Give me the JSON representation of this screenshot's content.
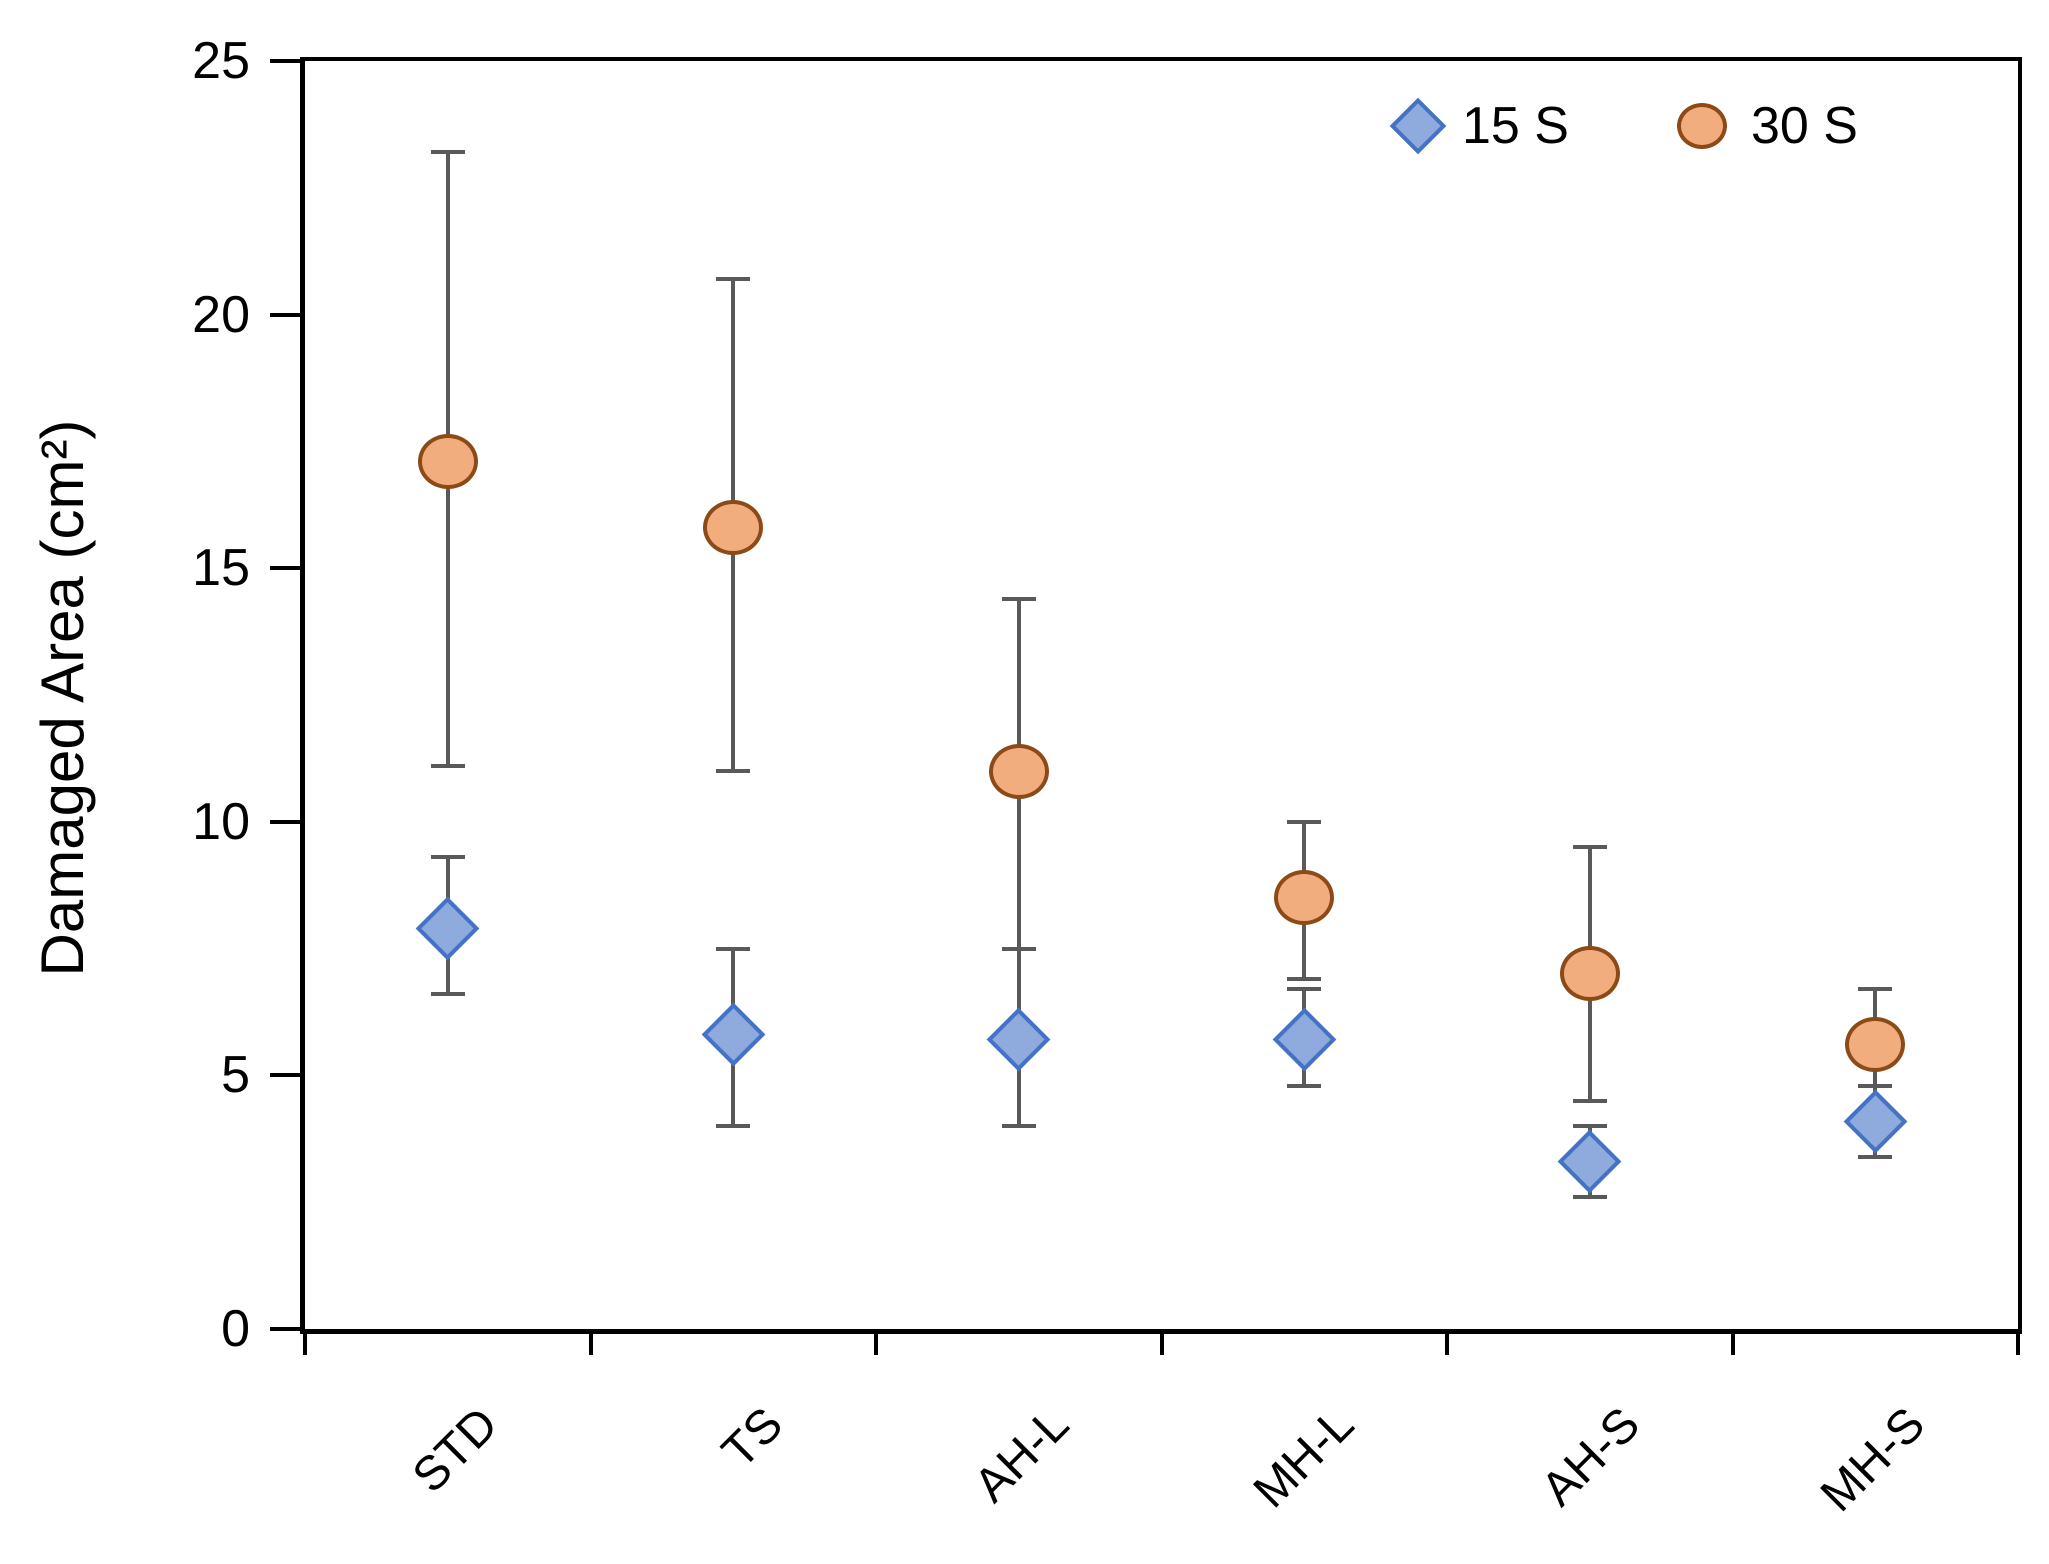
{
  "chart_data": {
    "type": "scatter",
    "title": "",
    "xlabel": "",
    "ylabel": "Damaged Area (cm²)",
    "ylim": [
      0,
      25
    ],
    "yticks": [
      0,
      5,
      10,
      15,
      20,
      25
    ],
    "categories": [
      "STD",
      "TS",
      "AH-L",
      "MH-L",
      "AH-S",
      "MH-S"
    ],
    "series": [
      {
        "name": "15 S",
        "marker": "diamond",
        "fill_color": "#8FAADC",
        "stroke_color": "#4472C4",
        "values": [
          7.9,
          5.8,
          5.7,
          5.7,
          3.3,
          4.1
        ],
        "err_low": [
          6.6,
          4.0,
          4.0,
          4.8,
          2.6,
          3.4
        ],
        "err_high": [
          9.3,
          7.5,
          7.5,
          6.7,
          4.0,
          4.8
        ]
      },
      {
        "name": "30 S",
        "marker": "circle",
        "fill_color": "#F2AD7E",
        "stroke_color": "#8C4A17",
        "values": [
          17.1,
          15.8,
          11.0,
          8.5,
          7.0,
          5.6
        ],
        "err_low": [
          11.1,
          11.0,
          7.5,
          6.9,
          4.5,
          4.8
        ],
        "err_high": [
          23.2,
          20.7,
          14.4,
          10.0,
          9.5,
          6.7
        ]
      }
    ],
    "legend_position": "top-right-inside",
    "grid": false,
    "error_bar_color": "#595959",
    "axis_color": "#000000"
  }
}
